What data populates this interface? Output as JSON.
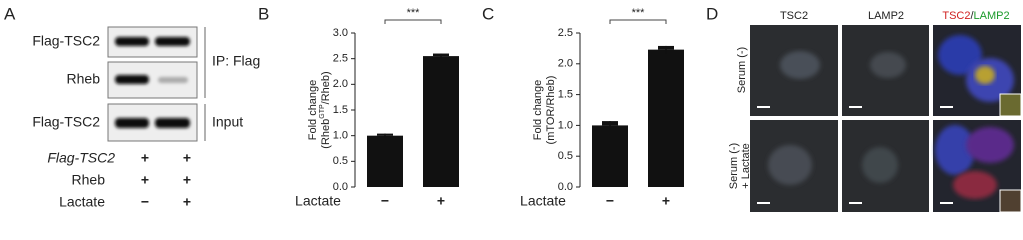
{
  "panel_a": {
    "panel": "A",
    "blot_rows": [
      "Flag-TSC2",
      "Rheb",
      "Flag-TSC2"
    ],
    "groups": [
      "IP: Flag",
      "Input"
    ],
    "conditions": [
      {
        "label": "Flag-TSC2",
        "signs": [
          "+",
          "+"
        ]
      },
      {
        "label": "Rheb",
        "signs": [
          "+",
          "+"
        ]
      },
      {
        "label": "Lactate",
        "signs": [
          "−",
          "+"
        ]
      }
    ]
  },
  "chart_data": [
    {
      "type": "bar",
      "panel": "B",
      "ylabel": [
        "Fold change",
        [
          "(Rheb",
          "GTP",
          "/Rheb)"
        ]
      ],
      "xlabel": "Lactate",
      "categories": [
        "−",
        "+"
      ],
      "values": [
        1.0,
        2.55
      ],
      "errors": [
        0.04,
        0.05
      ],
      "color": "#111111",
      "ylim": [
        0,
        3.0
      ],
      "yticks": [
        {
          "value": 0,
          "label": "0.0"
        },
        {
          "value": 0.5,
          "label": "0.5"
        },
        {
          "value": 1,
          "label": "1.0"
        },
        {
          "value": 1.5,
          "label": "1.5"
        },
        {
          "value": 2,
          "label": "2.0"
        },
        {
          "value": 2.5,
          "label": "2.5"
        },
        {
          "value": 3,
          "label": "3.0"
        }
      ],
      "annotation": "***"
    },
    {
      "type": "bar",
      "panel": "C",
      "ylabel": [
        "Fold change",
        [
          "(mTOR/Rheb)"
        ]
      ],
      "xlabel": "Lactate",
      "categories": [
        "−",
        "+"
      ],
      "values": [
        1.0,
        2.23
      ],
      "errors": [
        0.07,
        0.06
      ],
      "color": "#111111",
      "ylim": [
        0,
        2.5
      ],
      "yticks": [
        {
          "value": 0,
          "label": "0.0"
        },
        {
          "value": 0.5,
          "label": "0.5"
        },
        {
          "value": 1,
          "label": "1.0"
        },
        {
          "value": 1.5,
          "label": "1.5"
        },
        {
          "value": 2,
          "label": "2.0"
        },
        {
          "value": 2.5,
          "label": "2.5"
        }
      ],
      "annotation": "***"
    }
  ],
  "panel_d": {
    "panel": "D",
    "columns": [
      "TSC2",
      "LAMP2"
    ],
    "merged": [
      "TSC2",
      "/",
      "LAMP2"
    ],
    "rows": [
      [
        "Serum (-)"
      ],
      [
        "Serum (-)",
        "+ Lactate"
      ]
    ]
  }
}
